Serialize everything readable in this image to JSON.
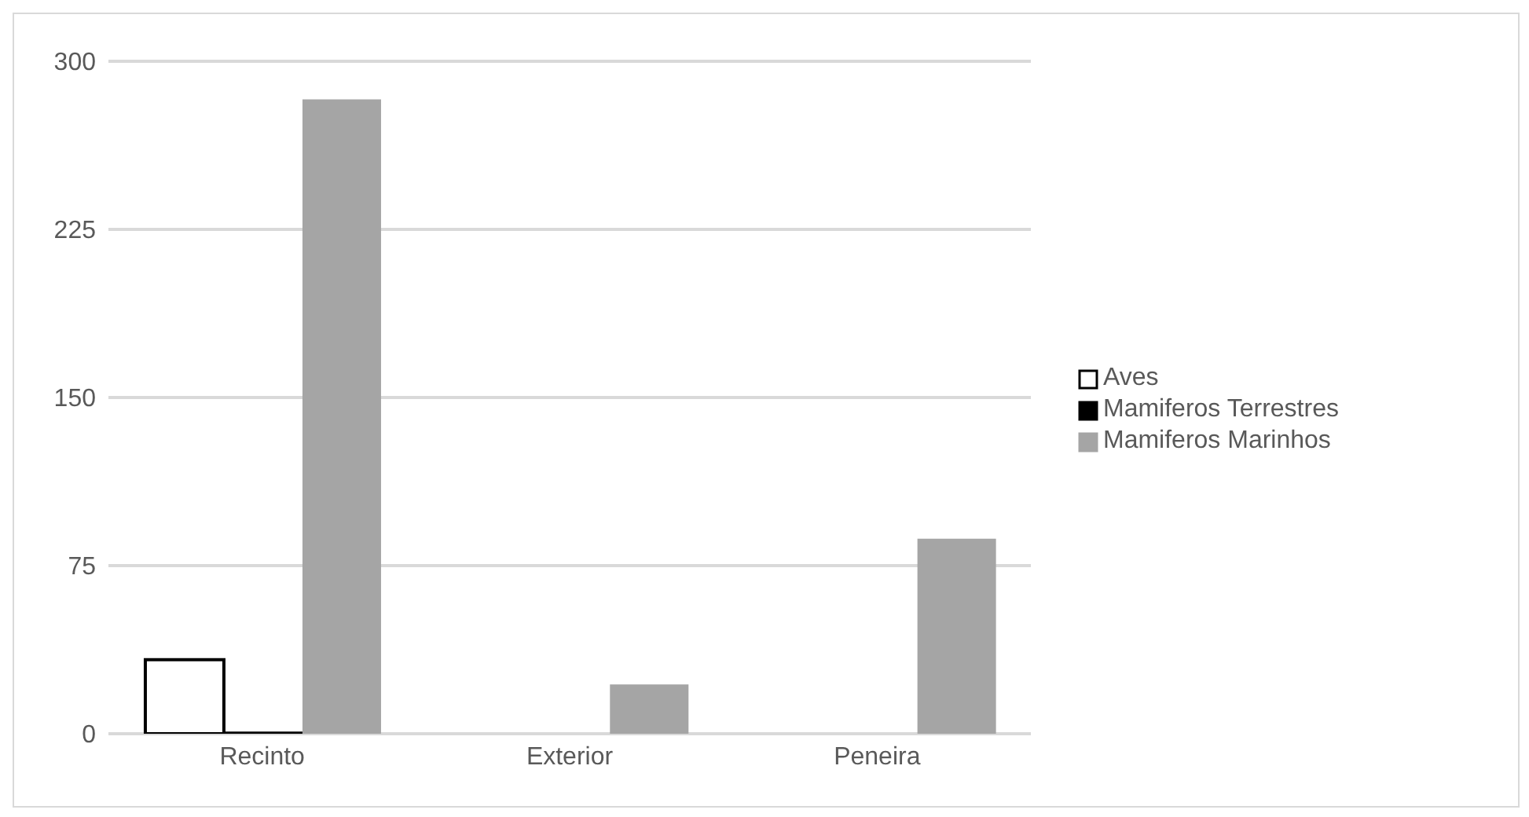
{
  "chart_data": {
    "type": "bar",
    "categories": [
      "Recinto",
      "Exterior",
      "Peneira"
    ],
    "series": [
      {
        "name": "Aves",
        "color": "#ffffff",
        "values": [
          33,
          0,
          0
        ]
      },
      {
        "name": "Mamiferos Terrestres",
        "color": "#000000",
        "values": [
          1,
          0,
          0
        ]
      },
      {
        "name": "Mamiferos Marinhos",
        "color": "#a5a5a5",
        "values": [
          283,
          22,
          87
        ]
      }
    ],
    "ylim": [
      0,
      300
    ],
    "yticks": [
      0,
      75,
      150,
      225,
      300
    ],
    "grid": "y",
    "legend": "right"
  }
}
